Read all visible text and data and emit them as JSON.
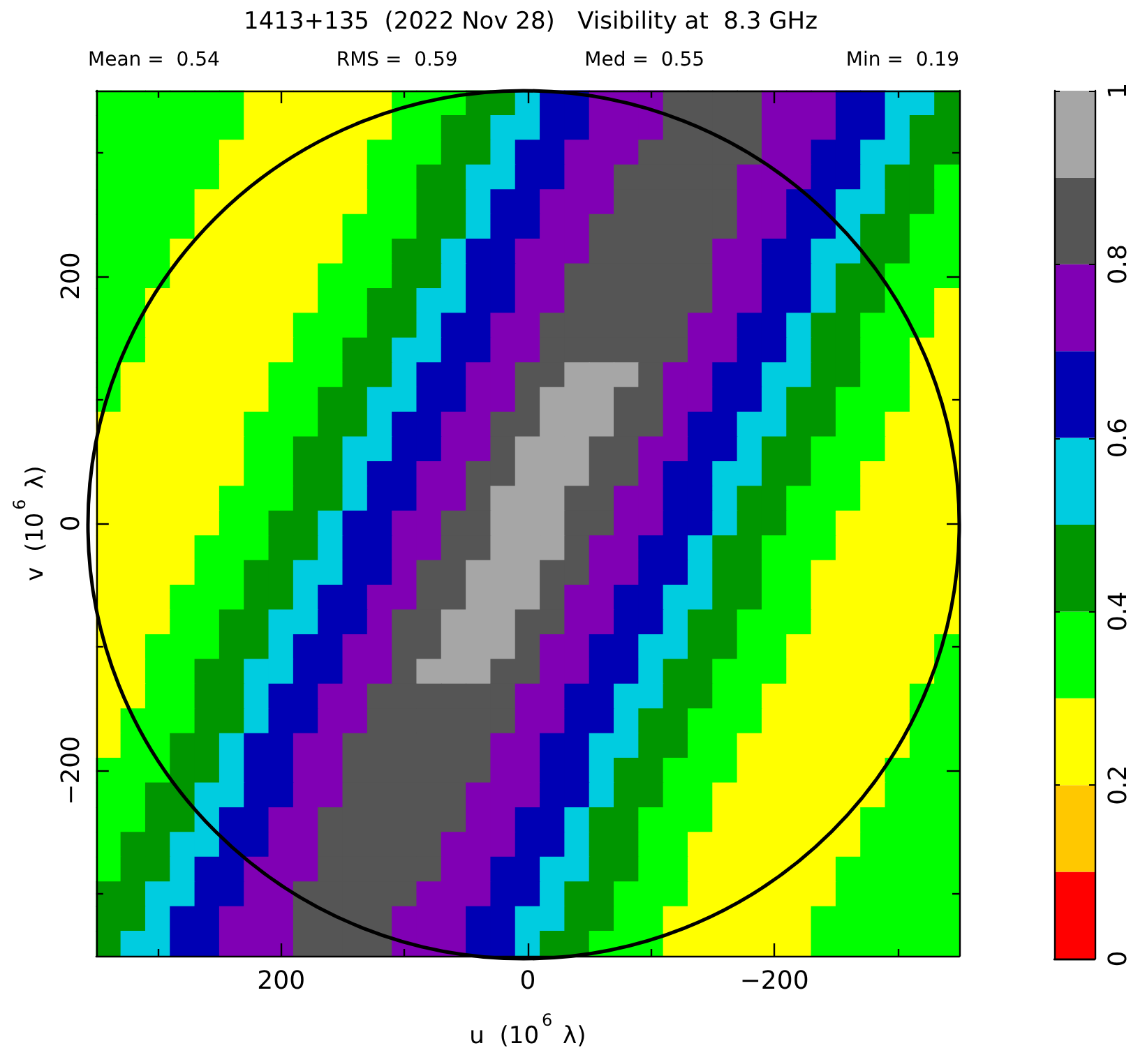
{
  "chart_data": {
    "type": "heatmap",
    "title": "1413+135  (2022 Nov 28)   Visibility at  8.3 GHz",
    "annotations": [
      "Mean =  0.54",
      "RMS =  0.59",
      "Med =  0.55",
      "Min =  0.19"
    ],
    "xlabel": "u  (10$^{6}$ λ)",
    "ylabel": "v  (10$^{6}$ λ)",
    "categories": [
      null,
      null,
      null,
      null,
      null,
      null,
      null,
      "200",
      null,
      null,
      null,
      null,
      null,
      null,
      null,
      null,
      null,
      "0",
      null,
      null,
      null,
      null,
      null,
      null,
      null,
      null,
      null,
      "−200",
      null,
      null,
      null,
      null,
      null,
      null,
      null
    ],
    "y_categories": [
      null,
      null,
      null,
      null,
      null,
      null,
      null,
      "200",
      null,
      null,
      null,
      null,
      null,
      null,
      null,
      null,
      null,
      "0",
      null,
      null,
      null,
      null,
      null,
      null,
      null,
      null,
      null,
      "−200",
      null,
      null,
      null,
      null,
      null,
      null,
      null
    ],
    "clim": [
      0,
      1
    ],
    "cticks": [
      0,
      0.2,
      0.4,
      0.6,
      0.8,
      1
    ],
    "cells": [
      [
        0.35,
        0.35,
        0.35,
        0.35,
        0.35,
        0.35,
        0.25,
        0.25,
        0.25,
        0.25,
        0.25,
        0.25,
        0.35,
        0.35,
        0.35,
        0.45,
        0.45,
        0.55,
        0.65,
        0.65,
        0.75,
        0.75,
        0.75,
        0.85,
        0.85,
        0.85,
        0.85,
        0.75,
        0.75,
        0.75,
        0.65,
        0.65,
        0.55,
        0.55,
        0.45
      ],
      [
        0.35,
        0.35,
        0.35,
        0.35,
        0.35,
        0.35,
        0.25,
        0.25,
        0.25,
        0.25,
        0.25,
        0.25,
        0.35,
        0.35,
        0.45,
        0.45,
        0.55,
        0.55,
        0.65,
        0.65,
        0.75,
        0.75,
        0.75,
        0.85,
        0.85,
        0.85,
        0.85,
        0.75,
        0.75,
        0.75,
        0.65,
        0.65,
        0.55,
        0.45,
        0.45
      ],
      [
        0.35,
        0.35,
        0.35,
        0.35,
        0.35,
        0.25,
        0.25,
        0.25,
        0.25,
        0.25,
        0.25,
        0.35,
        0.35,
        0.35,
        0.45,
        0.45,
        0.55,
        0.65,
        0.65,
        0.75,
        0.75,
        0.75,
        0.85,
        0.85,
        0.85,
        0.85,
        0.85,
        0.75,
        0.75,
        0.65,
        0.65,
        0.55,
        0.55,
        0.45,
        0.45
      ],
      [
        0.35,
        0.35,
        0.35,
        0.35,
        0.35,
        0.25,
        0.25,
        0.25,
        0.25,
        0.25,
        0.25,
        0.35,
        0.35,
        0.45,
        0.45,
        0.55,
        0.55,
        0.65,
        0.65,
        0.75,
        0.75,
        0.85,
        0.85,
        0.85,
        0.85,
        0.85,
        0.75,
        0.75,
        0.75,
        0.65,
        0.65,
        0.55,
        0.45,
        0.45,
        0.35
      ],
      [
        0.35,
        0.35,
        0.35,
        0.35,
        0.25,
        0.25,
        0.25,
        0.25,
        0.25,
        0.25,
        0.25,
        0.35,
        0.35,
        0.45,
        0.45,
        0.55,
        0.65,
        0.65,
        0.75,
        0.75,
        0.75,
        0.85,
        0.85,
        0.85,
        0.85,
        0.85,
        0.75,
        0.75,
        0.65,
        0.65,
        0.55,
        0.55,
        0.45,
        0.45,
        0.35
      ],
      [
        0.35,
        0.35,
        0.35,
        0.35,
        0.25,
        0.25,
        0.25,
        0.25,
        0.25,
        0.25,
        0.35,
        0.35,
        0.35,
        0.45,
        0.45,
        0.55,
        0.65,
        0.65,
        0.75,
        0.75,
        0.85,
        0.85,
        0.85,
        0.85,
        0.85,
        0.85,
        0.75,
        0.75,
        0.65,
        0.65,
        0.55,
        0.45,
        0.45,
        0.35,
        0.35
      ],
      [
        0.35,
        0.35,
        0.35,
        0.25,
        0.25,
        0.25,
        0.25,
        0.25,
        0.25,
        0.25,
        0.35,
        0.35,
        0.45,
        0.45,
        0.55,
        0.65,
        0.65,
        0.75,
        0.75,
        0.75,
        0.85,
        0.85,
        0.85,
        0.85,
        0.85,
        0.75,
        0.75,
        0.65,
        0.65,
        0.55,
        0.55,
        0.45,
        0.45,
        0.35,
        0.35
      ],
      [
        0.35,
        0.35,
        0.35,
        0.25,
        0.25,
        0.25,
        0.25,
        0.25,
        0.25,
        0.35,
        0.35,
        0.35,
        0.45,
        0.45,
        0.55,
        0.65,
        0.65,
        0.75,
        0.75,
        0.85,
        0.85,
        0.85,
        0.85,
        0.85,
        0.85,
        0.75,
        0.75,
        0.65,
        0.65,
        0.55,
        0.45,
        0.45,
        0.35,
        0.35,
        0.35
      ],
      [
        0.35,
        0.35,
        0.25,
        0.25,
        0.25,
        0.25,
        0.25,
        0.25,
        0.25,
        0.35,
        0.35,
        0.45,
        0.45,
        0.55,
        0.55,
        0.65,
        0.65,
        0.75,
        0.75,
        0.85,
        0.85,
        0.85,
        0.85,
        0.85,
        0.85,
        0.75,
        0.75,
        0.65,
        0.65,
        0.55,
        0.45,
        0.45,
        0.35,
        0.35,
        0.25
      ],
      [
        0.35,
        0.35,
        0.25,
        0.25,
        0.25,
        0.25,
        0.25,
        0.25,
        0.35,
        0.35,
        0.35,
        0.45,
        0.45,
        0.55,
        0.65,
        0.65,
        0.75,
        0.75,
        0.85,
        0.85,
        0.85,
        0.85,
        0.85,
        0.85,
        0.75,
        0.75,
        0.65,
        0.65,
        0.55,
        0.45,
        0.45,
        0.35,
        0.35,
        0.35,
        0.25
      ],
      [
        0.35,
        0.35,
        0.25,
        0.25,
        0.25,
        0.25,
        0.25,
        0.25,
        0.35,
        0.35,
        0.45,
        0.45,
        0.55,
        0.55,
        0.65,
        0.65,
        0.75,
        0.75,
        0.85,
        0.85,
        0.85,
        0.85,
        0.85,
        0.85,
        0.75,
        0.75,
        0.65,
        0.65,
        0.55,
        0.45,
        0.45,
        0.35,
        0.35,
        0.25,
        0.25
      ],
      [
        0.35,
        0.25,
        0.25,
        0.25,
        0.25,
        0.25,
        0.25,
        0.35,
        0.35,
        0.35,
        0.45,
        0.45,
        0.55,
        0.65,
        0.65,
        0.75,
        0.75,
        0.85,
        0.85,
        0.95,
        0.95,
        0.95,
        0.85,
        0.75,
        0.75,
        0.65,
        0.65,
        0.55,
        0.55,
        0.45,
        0.45,
        0.35,
        0.35,
        0.25,
        0.25
      ],
      [
        0.35,
        0.25,
        0.25,
        0.25,
        0.25,
        0.25,
        0.25,
        0.35,
        0.35,
        0.45,
        0.45,
        0.55,
        0.55,
        0.65,
        0.65,
        0.75,
        0.75,
        0.85,
        0.95,
        0.95,
        0.95,
        0.85,
        0.85,
        0.75,
        0.75,
        0.65,
        0.65,
        0.55,
        0.45,
        0.45,
        0.35,
        0.35,
        0.35,
        0.25,
        0.25
      ],
      [
        0.25,
        0.25,
        0.25,
        0.25,
        0.25,
        0.25,
        0.35,
        0.35,
        0.35,
        0.45,
        0.45,
        0.55,
        0.65,
        0.65,
        0.75,
        0.75,
        0.85,
        0.85,
        0.95,
        0.95,
        0.95,
        0.85,
        0.85,
        0.75,
        0.65,
        0.65,
        0.55,
        0.55,
        0.45,
        0.45,
        0.35,
        0.35,
        0.25,
        0.25,
        0.25
      ],
      [
        0.25,
        0.25,
        0.25,
        0.25,
        0.25,
        0.25,
        0.35,
        0.35,
        0.45,
        0.45,
        0.55,
        0.55,
        0.65,
        0.65,
        0.75,
        0.75,
        0.85,
        0.95,
        0.95,
        0.95,
        0.85,
        0.85,
        0.75,
        0.75,
        0.65,
        0.65,
        0.55,
        0.45,
        0.45,
        0.35,
        0.35,
        0.35,
        0.25,
        0.25,
        0.25
      ],
      [
        0.25,
        0.25,
        0.25,
        0.25,
        0.25,
        0.25,
        0.35,
        0.35,
        0.45,
        0.45,
        0.55,
        0.65,
        0.65,
        0.75,
        0.75,
        0.85,
        0.85,
        0.95,
        0.95,
        0.95,
        0.85,
        0.85,
        0.75,
        0.65,
        0.65,
        0.55,
        0.55,
        0.45,
        0.45,
        0.35,
        0.35,
        0.25,
        0.25,
        0.25,
        0.25
      ],
      [
        0.25,
        0.25,
        0.25,
        0.25,
        0.25,
        0.35,
        0.35,
        0.35,
        0.45,
        0.45,
        0.55,
        0.65,
        0.65,
        0.75,
        0.75,
        0.85,
        0.95,
        0.95,
        0.95,
        0.85,
        0.85,
        0.75,
        0.75,
        0.65,
        0.65,
        0.55,
        0.45,
        0.45,
        0.35,
        0.35,
        0.35,
        0.25,
        0.25,
        0.25,
        0.25
      ],
      [
        0.25,
        0.25,
        0.25,
        0.25,
        0.25,
        0.35,
        0.35,
        0.45,
        0.45,
        0.55,
        0.65,
        0.65,
        0.75,
        0.75,
        0.85,
        0.85,
        0.95,
        0.95,
        0.95,
        0.85,
        0.85,
        0.75,
        0.75,
        0.65,
        0.65,
        0.55,
        0.45,
        0.45,
        0.35,
        0.35,
        0.25,
        0.25,
        0.25,
        0.25,
        0.25
      ],
      [
        0.25,
        0.25,
        0.25,
        0.25,
        0.35,
        0.35,
        0.35,
        0.45,
        0.45,
        0.55,
        0.65,
        0.65,
        0.75,
        0.75,
        0.85,
        0.85,
        0.95,
        0.95,
        0.95,
        0.85,
        0.75,
        0.75,
        0.65,
        0.65,
        0.55,
        0.45,
        0.45,
        0.35,
        0.35,
        0.35,
        0.25,
        0.25,
        0.25,
        0.25,
        0.25
      ],
      [
        0.25,
        0.25,
        0.25,
        0.25,
        0.35,
        0.35,
        0.45,
        0.45,
        0.55,
        0.55,
        0.65,
        0.65,
        0.75,
        0.85,
        0.85,
        0.95,
        0.95,
        0.95,
        0.85,
        0.85,
        0.75,
        0.75,
        0.65,
        0.65,
        0.55,
        0.45,
        0.45,
        0.35,
        0.35,
        0.25,
        0.25,
        0.25,
        0.25,
        0.25,
        0.25
      ],
      [
        0.25,
        0.25,
        0.25,
        0.35,
        0.35,
        0.35,
        0.45,
        0.45,
        0.55,
        0.65,
        0.65,
        0.75,
        0.75,
        0.85,
        0.85,
        0.95,
        0.95,
        0.95,
        0.85,
        0.75,
        0.75,
        0.65,
        0.65,
        0.55,
        0.55,
        0.45,
        0.45,
        0.35,
        0.35,
        0.25,
        0.25,
        0.25,
        0.25,
        0.25,
        0.25
      ],
      [
        0.25,
        0.25,
        0.25,
        0.35,
        0.35,
        0.45,
        0.45,
        0.55,
        0.55,
        0.65,
        0.65,
        0.75,
        0.85,
        0.85,
        0.95,
        0.95,
        0.95,
        0.85,
        0.85,
        0.75,
        0.75,
        0.65,
        0.65,
        0.55,
        0.45,
        0.45,
        0.35,
        0.35,
        0.35,
        0.25,
        0.25,
        0.25,
        0.25,
        0.25,
        0.25
      ],
      [
        0.25,
        0.25,
        0.35,
        0.35,
        0.35,
        0.45,
        0.45,
        0.55,
        0.65,
        0.65,
        0.75,
        0.75,
        0.85,
        0.85,
        0.95,
        0.95,
        0.95,
        0.85,
        0.75,
        0.75,
        0.65,
        0.65,
        0.55,
        0.55,
        0.45,
        0.45,
        0.35,
        0.35,
        0.25,
        0.25,
        0.25,
        0.25,
        0.25,
        0.25,
        0.35
      ],
      [
        0.25,
        0.25,
        0.35,
        0.35,
        0.45,
        0.45,
        0.55,
        0.55,
        0.65,
        0.65,
        0.75,
        0.75,
        0.85,
        0.95,
        0.95,
        0.95,
        0.85,
        0.85,
        0.75,
        0.75,
        0.65,
        0.65,
        0.55,
        0.45,
        0.45,
        0.35,
        0.35,
        0.35,
        0.25,
        0.25,
        0.25,
        0.25,
        0.25,
        0.25,
        0.35
      ],
      [
        0.25,
        0.25,
        0.35,
        0.35,
        0.45,
        0.45,
        0.55,
        0.65,
        0.65,
        0.75,
        0.75,
        0.85,
        0.85,
        0.85,
        0.85,
        0.85,
        0.85,
        0.75,
        0.75,
        0.65,
        0.65,
        0.55,
        0.55,
        0.45,
        0.45,
        0.35,
        0.35,
        0.25,
        0.25,
        0.25,
        0.25,
        0.25,
        0.25,
        0.35,
        0.35
      ],
      [
        0.25,
        0.35,
        0.35,
        0.35,
        0.45,
        0.45,
        0.55,
        0.65,
        0.65,
        0.75,
        0.75,
        0.85,
        0.85,
        0.85,
        0.85,
        0.85,
        0.85,
        0.75,
        0.75,
        0.65,
        0.65,
        0.55,
        0.45,
        0.45,
        0.35,
        0.35,
        0.35,
        0.25,
        0.25,
        0.25,
        0.25,
        0.25,
        0.25,
        0.35,
        0.35
      ],
      [
        0.25,
        0.35,
        0.35,
        0.45,
        0.45,
        0.55,
        0.65,
        0.65,
        0.75,
        0.75,
        0.85,
        0.85,
        0.85,
        0.85,
        0.85,
        0.85,
        0.75,
        0.75,
        0.65,
        0.65,
        0.55,
        0.55,
        0.45,
        0.45,
        0.35,
        0.35,
        0.25,
        0.25,
        0.25,
        0.25,
        0.25,
        0.25,
        0.25,
        0.35,
        0.35
      ],
      [
        0.35,
        0.35,
        0.35,
        0.45,
        0.45,
        0.55,
        0.65,
        0.65,
        0.75,
        0.75,
        0.85,
        0.85,
        0.85,
        0.85,
        0.85,
        0.85,
        0.75,
        0.75,
        0.65,
        0.65,
        0.55,
        0.45,
        0.45,
        0.35,
        0.35,
        0.35,
        0.25,
        0.25,
        0.25,
        0.25,
        0.25,
        0.25,
        0.35,
        0.35,
        0.35
      ],
      [
        0.35,
        0.35,
        0.45,
        0.45,
        0.55,
        0.55,
        0.65,
        0.65,
        0.75,
        0.75,
        0.85,
        0.85,
        0.85,
        0.85,
        0.85,
        0.75,
        0.75,
        0.75,
        0.65,
        0.65,
        0.55,
        0.45,
        0.45,
        0.35,
        0.35,
        0.25,
        0.25,
        0.25,
        0.25,
        0.25,
        0.25,
        0.25,
        0.35,
        0.35,
        0.35
      ],
      [
        0.35,
        0.35,
        0.45,
        0.45,
        0.55,
        0.65,
        0.65,
        0.75,
        0.75,
        0.85,
        0.85,
        0.85,
        0.85,
        0.85,
        0.85,
        0.75,
        0.75,
        0.65,
        0.65,
        0.55,
        0.45,
        0.45,
        0.35,
        0.35,
        0.35,
        0.25,
        0.25,
        0.25,
        0.25,
        0.25,
        0.25,
        0.35,
        0.35,
        0.35,
        0.35
      ],
      [
        0.35,
        0.45,
        0.45,
        0.55,
        0.55,
        0.65,
        0.65,
        0.75,
        0.75,
        0.85,
        0.85,
        0.85,
        0.85,
        0.85,
        0.75,
        0.75,
        0.75,
        0.65,
        0.65,
        0.55,
        0.45,
        0.45,
        0.35,
        0.35,
        0.25,
        0.25,
        0.25,
        0.25,
        0.25,
        0.25,
        0.25,
        0.35,
        0.35,
        0.35,
        0.35
      ],
      [
        0.35,
        0.45,
        0.45,
        0.55,
        0.65,
        0.65,
        0.75,
        0.75,
        0.75,
        0.85,
        0.85,
        0.85,
        0.85,
        0.85,
        0.75,
        0.75,
        0.65,
        0.65,
        0.55,
        0.55,
        0.45,
        0.45,
        0.35,
        0.35,
        0.25,
        0.25,
        0.25,
        0.25,
        0.25,
        0.25,
        0.35,
        0.35,
        0.35,
        0.35,
        0.35
      ],
      [
        0.45,
        0.45,
        0.55,
        0.55,
        0.65,
        0.65,
        0.75,
        0.75,
        0.85,
        0.85,
        0.85,
        0.85,
        0.85,
        0.75,
        0.75,
        0.75,
        0.65,
        0.65,
        0.55,
        0.45,
        0.45,
        0.35,
        0.35,
        0.35,
        0.25,
        0.25,
        0.25,
        0.25,
        0.25,
        0.25,
        0.35,
        0.35,
        0.35,
        0.35,
        0.35
      ],
      [
        0.45,
        0.45,
        0.55,
        0.65,
        0.65,
        0.75,
        0.75,
        0.75,
        0.85,
        0.85,
        0.85,
        0.85,
        0.75,
        0.75,
        0.75,
        0.65,
        0.65,
        0.55,
        0.55,
        0.45,
        0.45,
        0.35,
        0.35,
        0.25,
        0.25,
        0.25,
        0.25,
        0.25,
        0.25,
        0.35,
        0.35,
        0.35,
        0.35,
        0.35,
        0.35
      ],
      [
        0.45,
        0.55,
        0.55,
        0.65,
        0.65,
        0.75,
        0.75,
        0.75,
        0.85,
        0.85,
        0.85,
        0.85,
        0.75,
        0.75,
        0.75,
        0.65,
        0.65,
        0.55,
        0.45,
        0.45,
        0.35,
        0.35,
        0.35,
        0.25,
        0.25,
        0.25,
        0.25,
        0.25,
        0.25,
        0.35,
        0.35,
        0.35,
        0.35,
        0.35,
        0.35
      ]
    ]
  }
}
